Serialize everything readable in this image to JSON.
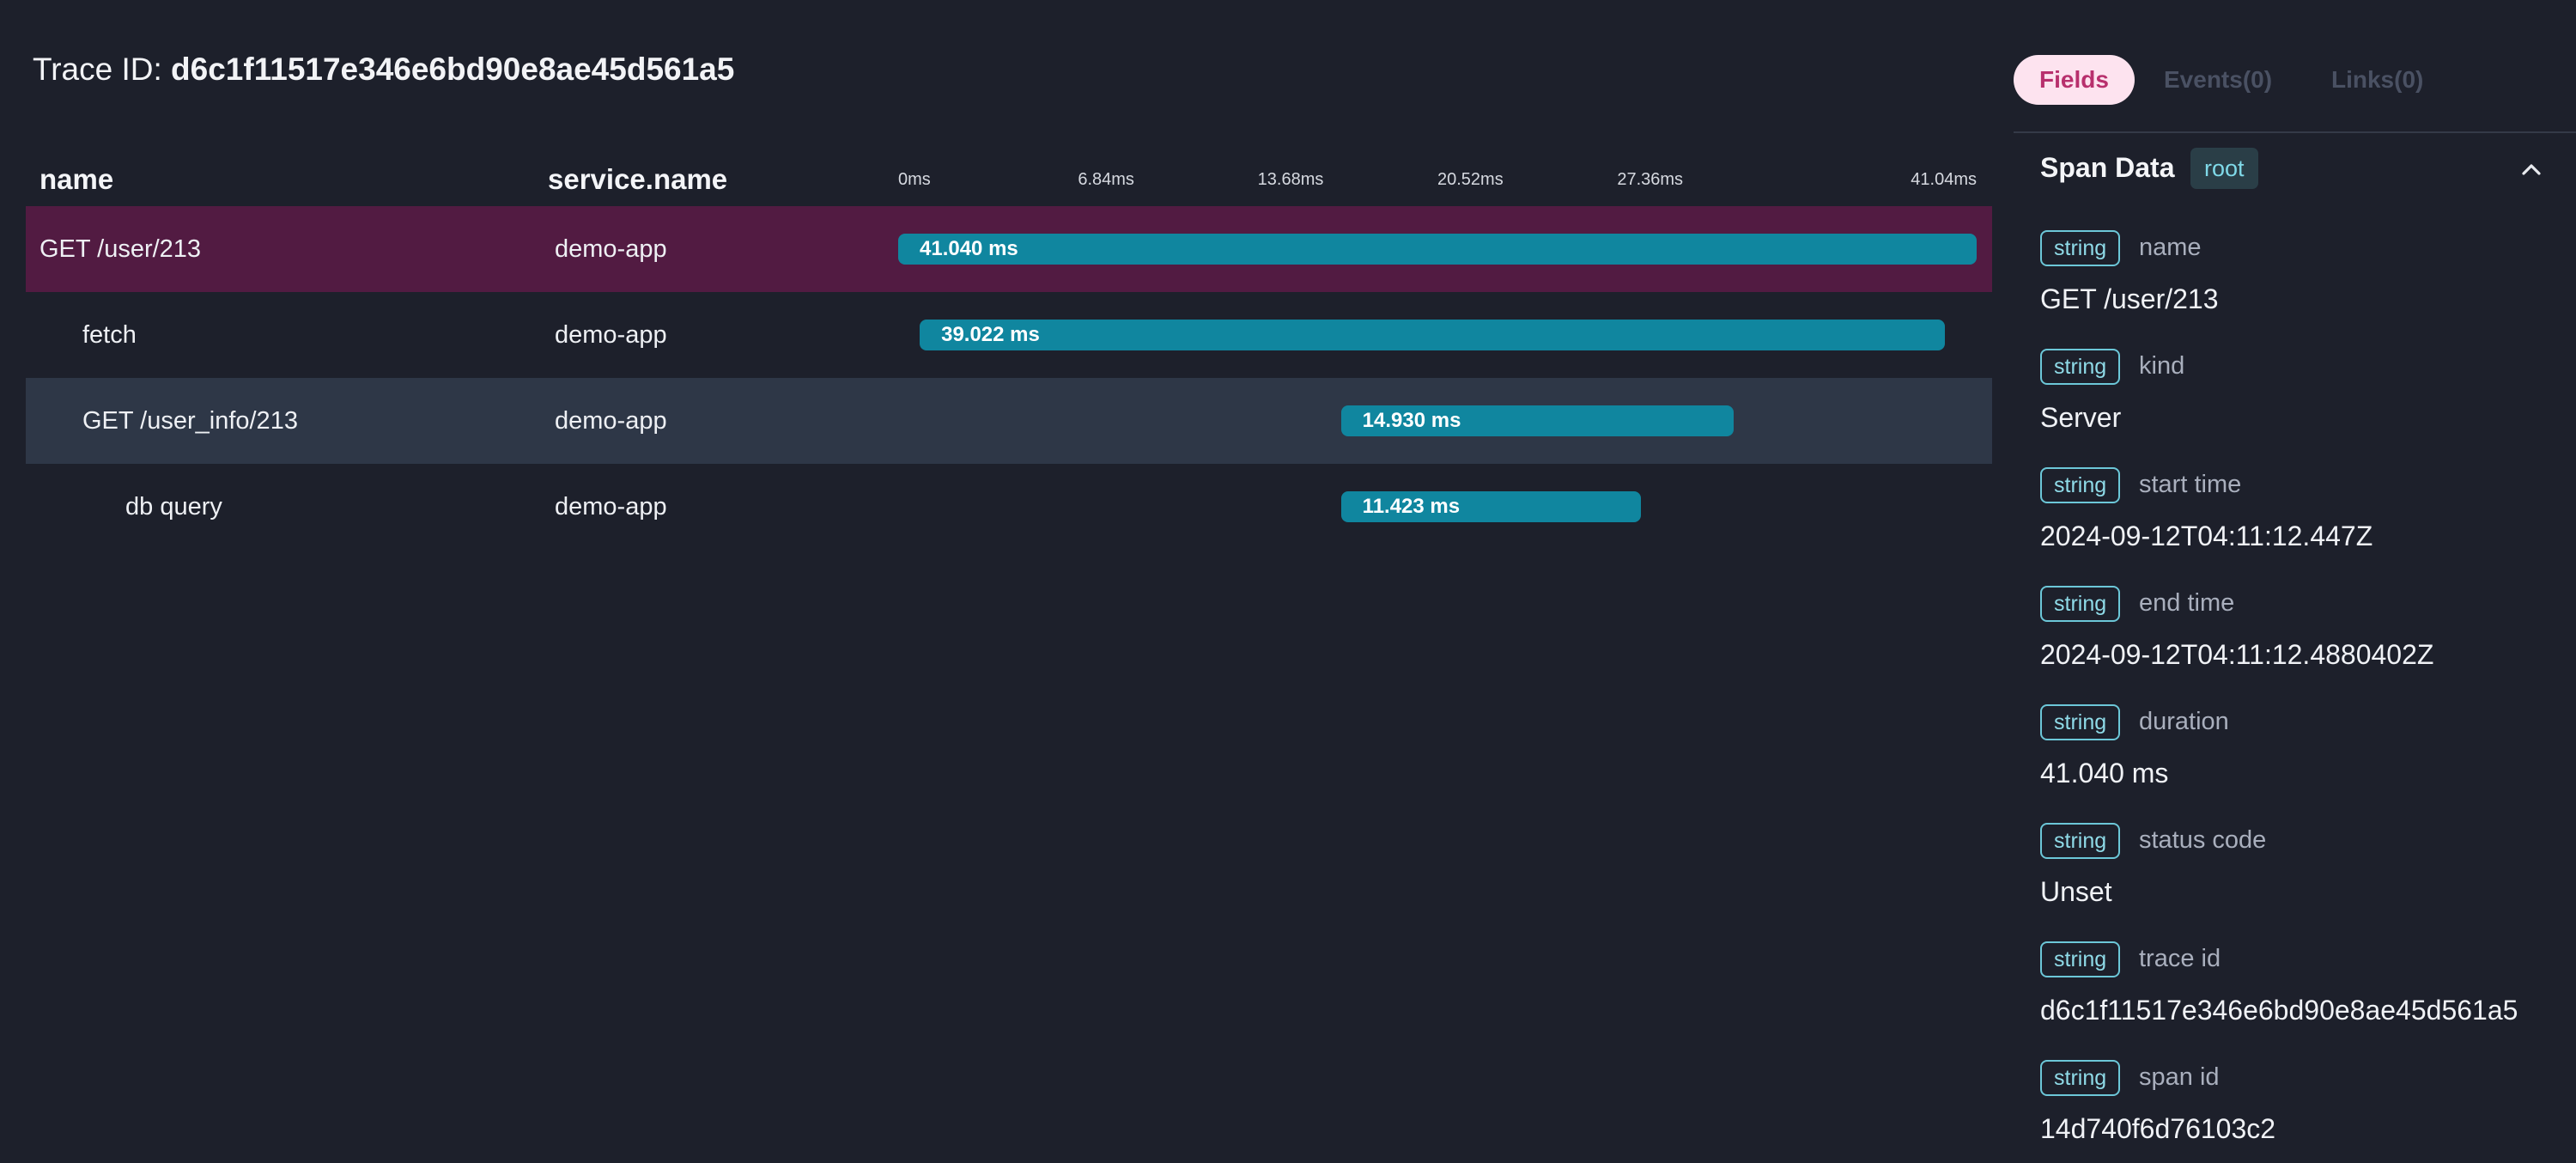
{
  "trace": {
    "label": "Trace ID:",
    "id": "d6c1f11517e346e6bd90e8ae45d561a5"
  },
  "table": {
    "columns": {
      "name": "name",
      "service": "service.name"
    },
    "timeline": {
      "ticks": [
        "0ms",
        "6.84ms",
        "13.68ms",
        "20.52ms",
        "27.36ms",
        "41.04ms"
      ],
      "total_ms": 41.04
    },
    "rows": [
      {
        "name": "GET /user/213",
        "service": "demo-app",
        "depth": 0,
        "start_ms": 0.0,
        "duration_ms": 41.04,
        "duration_label": "41.040 ms",
        "state": "selected"
      },
      {
        "name": "fetch",
        "service": "demo-app",
        "depth": 1,
        "start_ms": 0.82,
        "duration_ms": 39.022,
        "duration_label": "39.022 ms",
        "state": "normal"
      },
      {
        "name": "GET /user_info/213",
        "service": "demo-app",
        "depth": 1,
        "start_ms": 16.85,
        "duration_ms": 14.93,
        "duration_label": "14.930 ms",
        "state": "hovered"
      },
      {
        "name": "db query",
        "service": "demo-app",
        "depth": 2,
        "start_ms": 16.85,
        "duration_ms": 11.423,
        "duration_label": "11.423 ms",
        "state": "normal"
      }
    ]
  },
  "tabs": {
    "fields": "Fields",
    "events": "Events(0)",
    "links": "Links(0)"
  },
  "span_data": {
    "title": "Span Data",
    "badge": "root",
    "fields": [
      {
        "type": "string",
        "name": "name",
        "value": "GET /user/213"
      },
      {
        "type": "string",
        "name": "kind",
        "value": "Server"
      },
      {
        "type": "string",
        "name": "start time",
        "value": "2024-09-12T04:11:12.447Z"
      },
      {
        "type": "string",
        "name": "end time",
        "value": "2024-09-12T04:11:12.4880402Z"
      },
      {
        "type": "string",
        "name": "duration",
        "value": "41.040 ms"
      },
      {
        "type": "string",
        "name": "status code",
        "value": "Unset"
      },
      {
        "type": "string",
        "name": "trace id",
        "value": "d6c1f11517e346e6bd90e8ae45d561a5"
      },
      {
        "type": "string",
        "name": "span id",
        "value": "14d740f6d76103c2"
      }
    ]
  },
  "colors": {
    "background": "#1d202b",
    "selected_row": "#521b42",
    "hovered_row": "#2e3747",
    "bar": "#10869f",
    "tab_active_bg": "#fde3ef",
    "tab_active_text": "#b8306d",
    "type_badge": "#6cc7d8"
  }
}
